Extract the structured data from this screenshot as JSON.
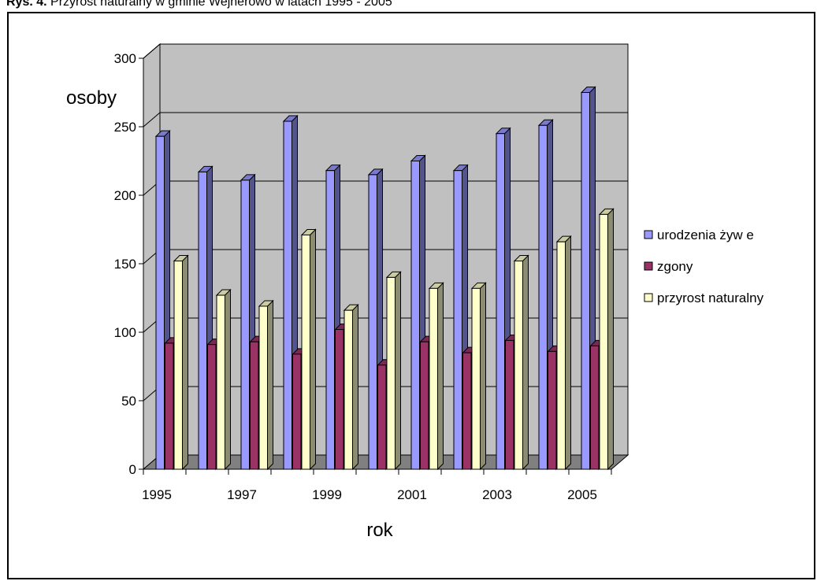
{
  "caption": {
    "prefix": "Rys. 4.",
    "text": "Przyrost naturalny w gminie Wejherowo w latach 1995 - 2005"
  },
  "chart_data": {
    "type": "bar",
    "categories": [
      "1995",
      "1996",
      "1997",
      "1998",
      "1999",
      "2000",
      "2001",
      "2002",
      "2003",
      "2004",
      "2005"
    ],
    "x_tick_labels": [
      "1995",
      "",
      "1997",
      "",
      "1999",
      "",
      "2001",
      "",
      "2003",
      "",
      "2005"
    ],
    "series": [
      {
        "name": "urodzenia żyw e",
        "color": "#9999FF",
        "values": [
          243,
          217,
          211,
          254,
          218,
          215,
          225,
          218,
          245,
          251,
          275
        ]
      },
      {
        "name": "zgony",
        "color": "#993366",
        "values": [
          92,
          91,
          93,
          84,
          102,
          76,
          93,
          85,
          94,
          86,
          90
        ]
      },
      {
        "name": "przyrost naturalny",
        "color": "#FFFFCC",
        "values": [
          152,
          127,
          119,
          171,
          116,
          140,
          132,
          132,
          152,
          166,
          186
        ]
      }
    ],
    "ylabel": "osoby",
    "xlabel": "rok",
    "ylim": [
      0,
      300
    ],
    "yticks": [
      0,
      50,
      100,
      150,
      200,
      250,
      300
    ],
    "grid": true,
    "legend_position": "right",
    "wall_color": "#C0C0C0",
    "floor_color": "#808080"
  }
}
